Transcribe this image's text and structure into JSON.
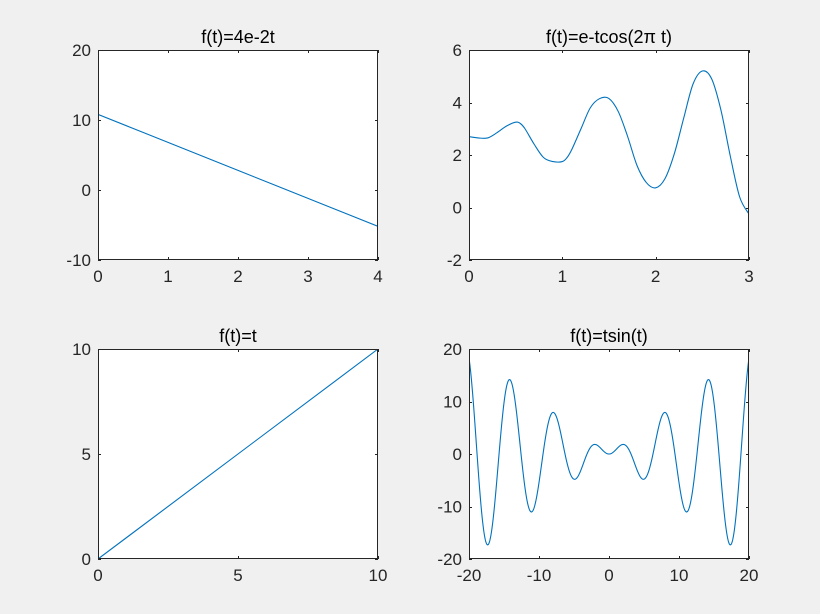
{
  "figure": {
    "background": "#f0f0f0",
    "line_color": "#0072bd"
  },
  "chart_data": [
    {
      "type": "line",
      "title": "f(t)=4e-2t",
      "xlabel": "",
      "ylabel": "",
      "xlim": [
        0,
        4
      ],
      "ylim": [
        -10,
        20
      ],
      "xticks": [
        0,
        1,
        2,
        3,
        4
      ],
      "yticks": [
        -10,
        0,
        10,
        20
      ],
      "grid": false,
      "series": [
        {
          "x": [
            0,
            1,
            2,
            3,
            4
          ],
          "y": [
            10.8,
            6.8,
            2.8,
            -1.2,
            -5.2
          ]
        }
      ]
    },
    {
      "type": "line",
      "title": "f(t)=e-tcos(2π t)",
      "xlabel": "",
      "ylabel": "",
      "xlim": [
        0,
        3
      ],
      "ylim": [
        -2,
        6
      ],
      "xticks": [
        0,
        1,
        2,
        3
      ],
      "yticks": [
        -2,
        0,
        2,
        4,
        6
      ],
      "grid": false,
      "series": [
        {
          "x": [
            0,
            0.1,
            0.2,
            0.3,
            0.4,
            0.5,
            0.55,
            0.6,
            0.7,
            0.8,
            0.9,
            1.0,
            1.05,
            1.1,
            1.2,
            1.3,
            1.4,
            1.5,
            1.6,
            1.7,
            1.8,
            1.9,
            2.0,
            2.1,
            2.2,
            2.3,
            2.4,
            2.5,
            2.6,
            2.7,
            2.8,
            2.9,
            3.0
          ],
          "y": [
            2.7,
            2.65,
            2.65,
            2.85,
            3.1,
            3.25,
            3.2,
            3.0,
            2.4,
            1.9,
            1.75,
            1.75,
            1.9,
            2.2,
            3.0,
            3.8,
            4.15,
            4.15,
            3.65,
            2.7,
            1.6,
            0.95,
            0.75,
            1.1,
            2.05,
            3.4,
            4.7,
            5.2,
            4.9,
            3.7,
            1.95,
            0.4,
            -0.25
          ]
        }
      ]
    },
    {
      "type": "line",
      "title": "f(t)=t",
      "xlabel": "",
      "ylabel": "",
      "xlim": [
        0,
        10
      ],
      "ylim": [
        0,
        10
      ],
      "xticks": [
        0,
        5,
        10
      ],
      "yticks": [
        0,
        5,
        10
      ],
      "grid": false,
      "series": [
        {
          "x": [
            0,
            10
          ],
          "y": [
            0,
            10
          ]
        }
      ]
    },
    {
      "type": "line",
      "title": "f(t)=tsin(t)",
      "xlabel": "",
      "ylabel": "",
      "xlim": [
        -20,
        20
      ],
      "ylim": [
        -20,
        20
      ],
      "xticks": [
        -20,
        -10,
        0,
        10,
        20
      ],
      "yticks": [
        -20,
        -10,
        0,
        10,
        20
      ],
      "grid": false,
      "series": [
        {
          "function": "t*sin(t)",
          "samples": 1000
        }
      ]
    }
  ]
}
